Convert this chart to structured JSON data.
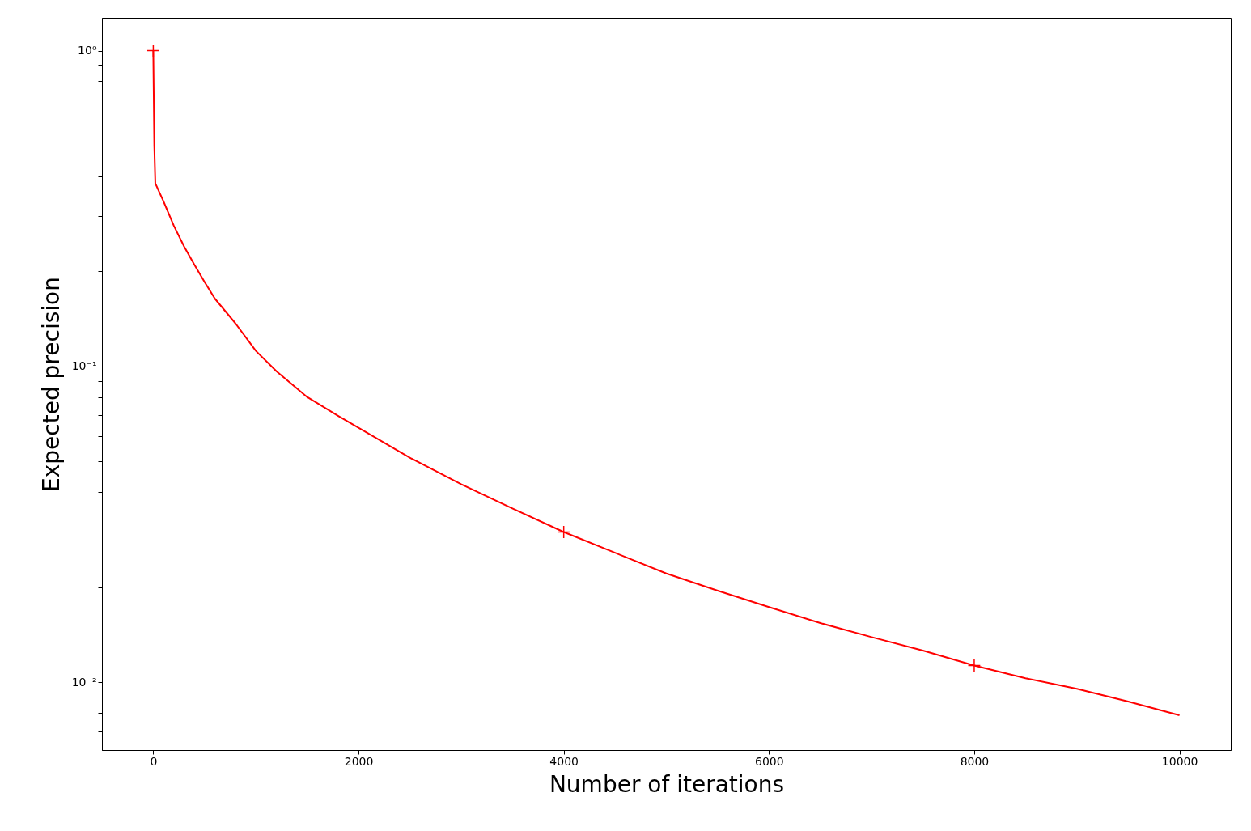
{
  "chart_data": {
    "type": "line",
    "xlabel": "Number of iterations",
    "ylabel": "Expected precision",
    "log": "y",
    "grid": false,
    "xlim": [
      -500,
      10500
    ],
    "xticks": [
      0,
      2000,
      4000,
      6000,
      8000,
      10000
    ],
    "ylim": [
      0.0061,
      1.27
    ],
    "yticks": [
      {
        "value": 0.007,
        "label": null
      },
      {
        "value": 0.008,
        "label": null
      },
      {
        "value": 0.009,
        "label": null
      },
      {
        "value": 0.01,
        "label": "10⁻²"
      },
      {
        "value": 0.02,
        "label": null
      },
      {
        "value": 0.03,
        "label": null
      },
      {
        "value": 0.04,
        "label": null
      },
      {
        "value": 0.05,
        "label": null
      },
      {
        "value": 0.06,
        "label": null
      },
      {
        "value": 0.07,
        "label": null
      },
      {
        "value": 0.08,
        "label": null
      },
      {
        "value": 0.09,
        "label": null
      },
      {
        "value": 0.1,
        "label": "10⁻¹"
      },
      {
        "value": 0.2,
        "label": null
      },
      {
        "value": 0.3,
        "label": null
      },
      {
        "value": 0.4,
        "label": null
      },
      {
        "value": 0.5,
        "label": null
      },
      {
        "value": 0.6,
        "label": null
      },
      {
        "value": 0.7,
        "label": null
      },
      {
        "value": 0.8,
        "label": null
      },
      {
        "value": 0.9,
        "label": null
      },
      {
        "value": 1,
        "label": "10⁰"
      }
    ],
    "series": [
      {
        "color": "#ff0000",
        "marker": "none",
        "line_style": "solid",
        "x": [
          0,
          10,
          20,
          100,
          200,
          300,
          400,
          500,
          600,
          800,
          1000,
          1200,
          1500,
          1800,
          2000,
          2500,
          3000,
          3500,
          4000,
          4500,
          5000,
          5500,
          6000,
          6500,
          7000,
          7500,
          8000,
          8500,
          9000,
          9500,
          10000
        ],
        "values": [
          1.0,
          0.5,
          0.38,
          0.333,
          0.279,
          0.24,
          0.21,
          0.185,
          0.164,
          0.137,
          0.112,
          0.0966,
          0.08,
          0.0698,
          0.064,
          0.0514,
          0.0424,
          0.0355,
          0.0299,
          0.0257,
          0.0221,
          0.0195,
          0.0173,
          0.0154,
          0.0139,
          0.0126,
          0.0113,
          0.0103,
          0.00954,
          0.00869,
          0.00786
        ]
      },
      {
        "type": "scatter",
        "color": "#ff0000",
        "marker": "cross",
        "x": [
          0,
          4000,
          8000
        ],
        "values": [
          1.0,
          0.0299,
          0.0113
        ]
      }
    ]
  }
}
